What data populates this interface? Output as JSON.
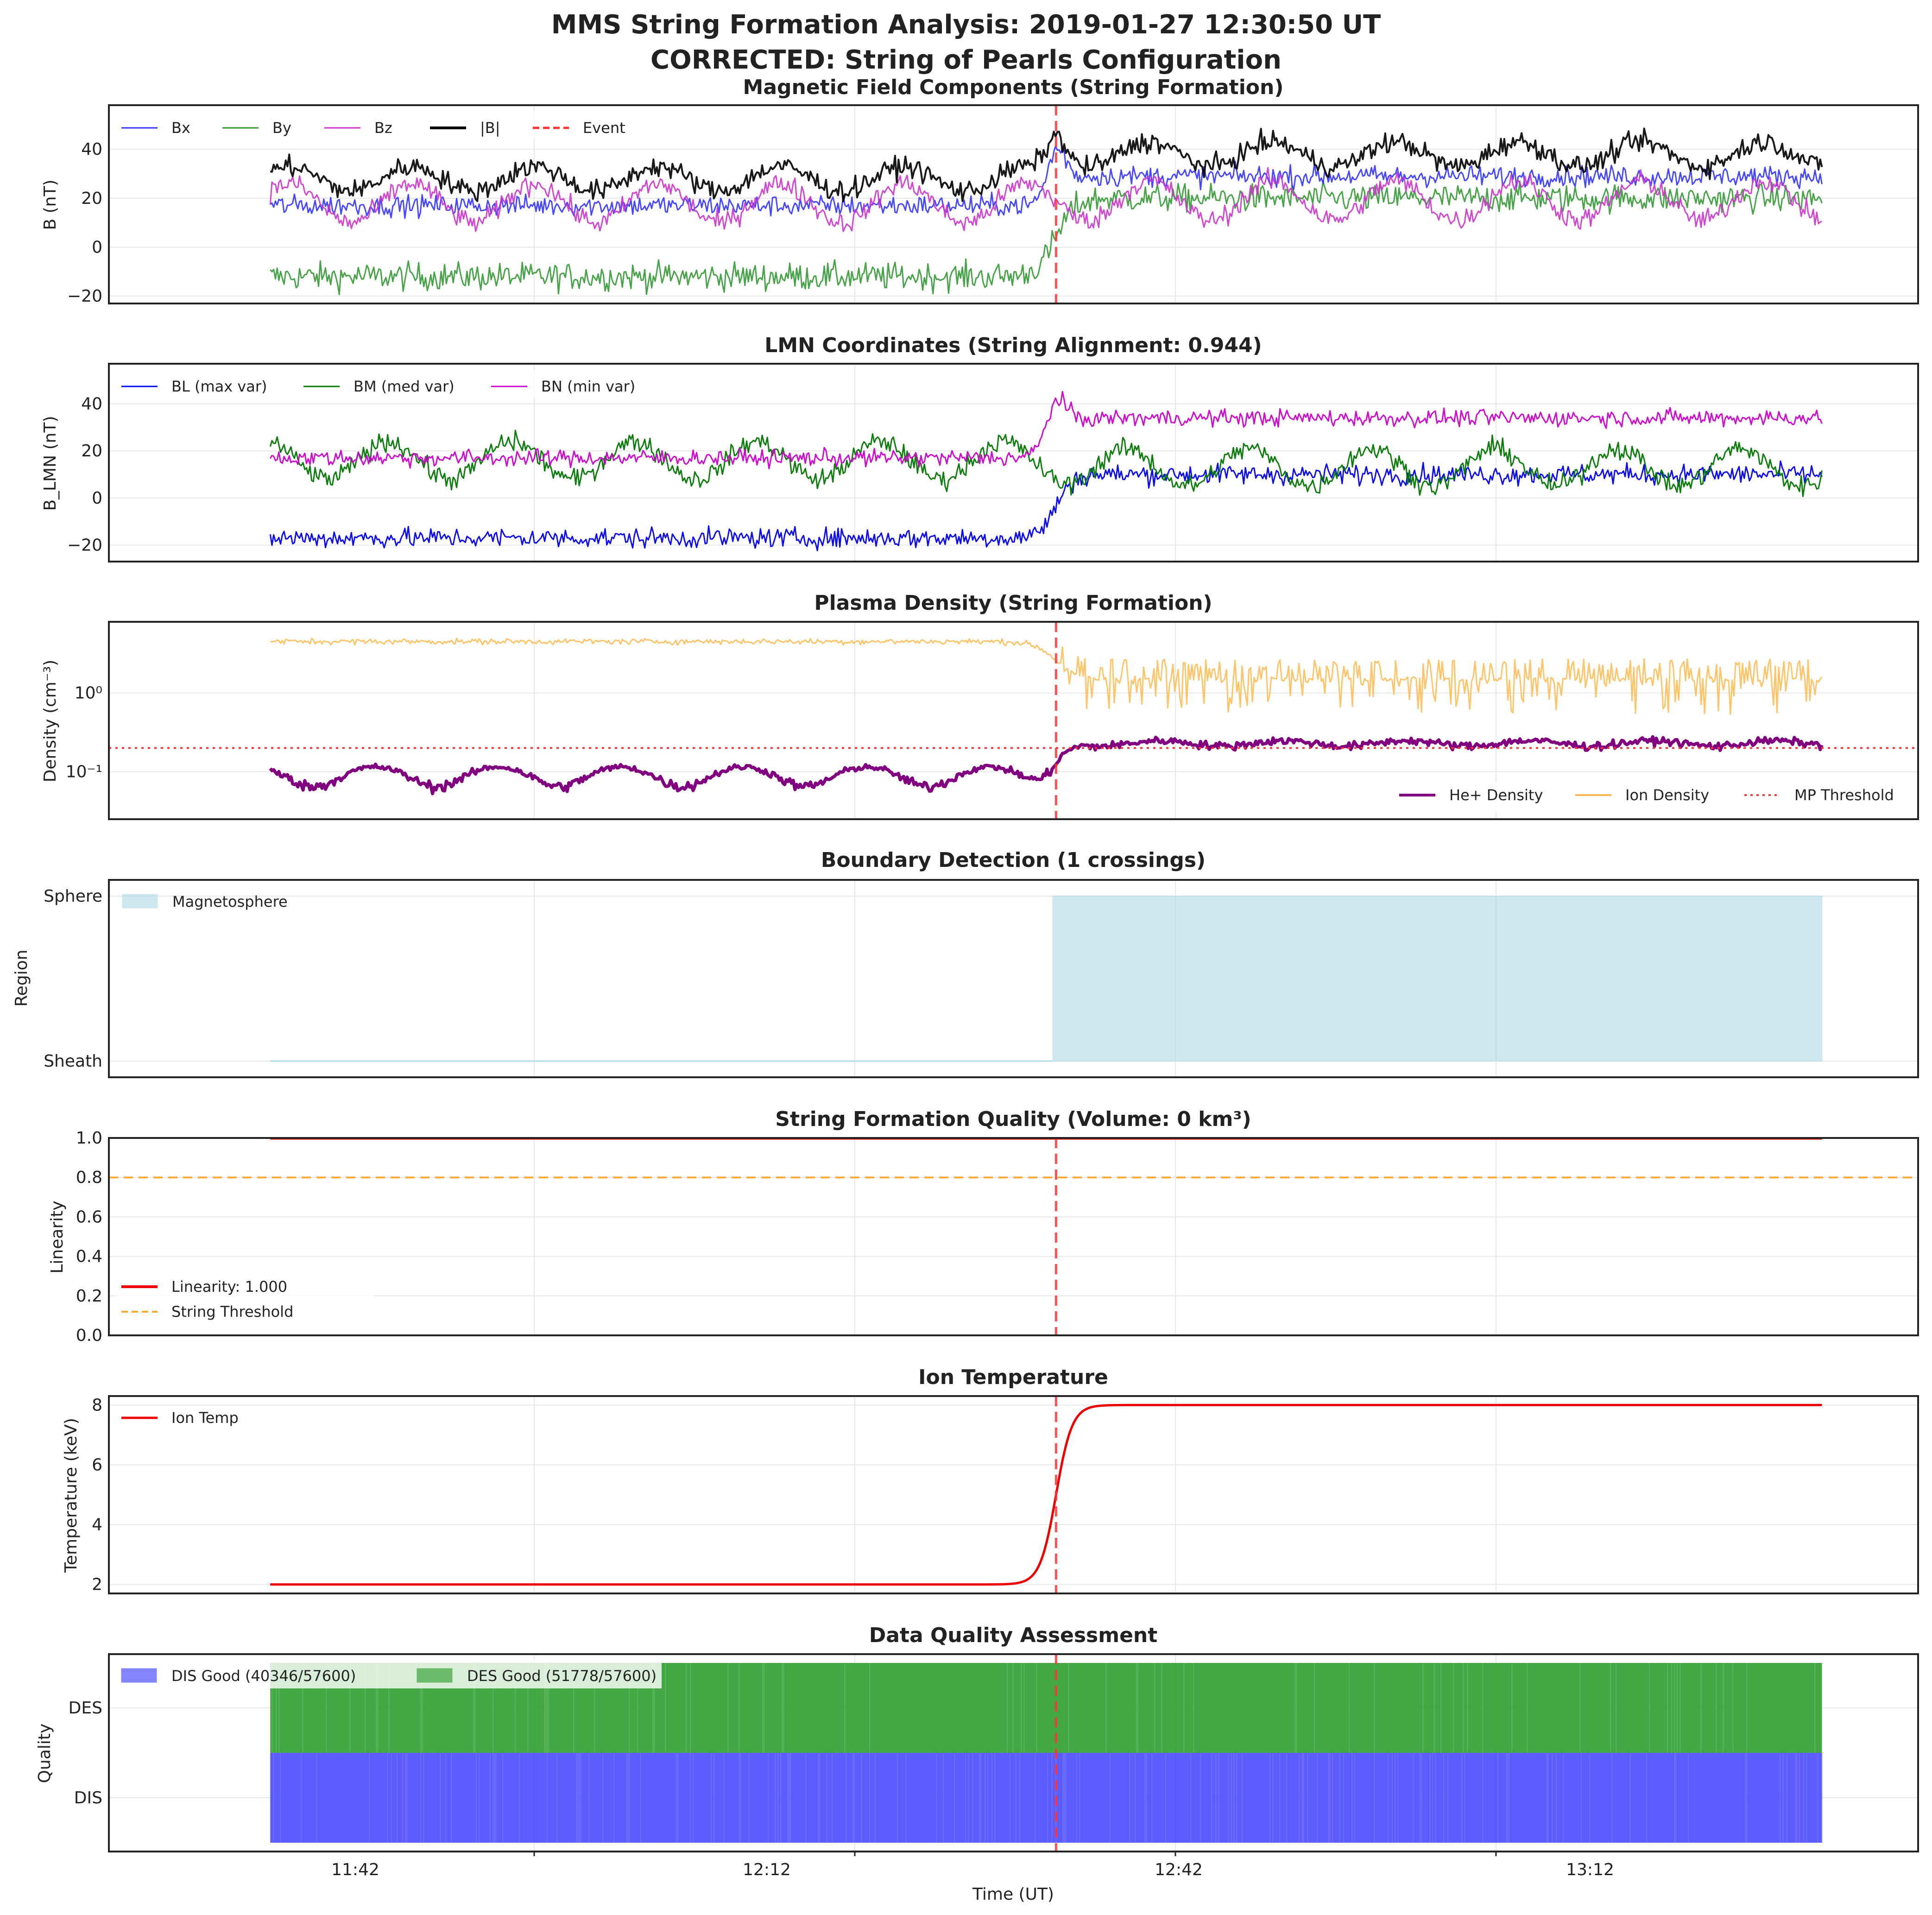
{
  "figure": {
    "title_line1": "MMS String Formation Analysis: 2019-01-27 12:30:50 UT",
    "title_line2": "CORRECTED: String of Pearls Configuration",
    "xlabel": "Time (UT)",
    "x_ticks": [
      "11:42",
      "12:12",
      "12:42",
      "13:12"
    ],
    "event_label": "Event",
    "event_color": "#ff3333"
  },
  "chart_data": [
    {
      "id": "mag",
      "type": "line",
      "title": "Magnetic Field Components (String Formation)",
      "ylabel": "B (nT)",
      "y_ticks": [
        "40",
        "20",
        "0",
        "−20"
      ],
      "ylim": [
        -23,
        58
      ],
      "grid": true,
      "legend": "top-left",
      "event_time": "12:30:50",
      "series": [
        {
          "name": "Bx",
          "color": "#3333ff",
          "before": 17,
          "after": 29,
          "peak": 46,
          "noise": 3
        },
        {
          "name": "By",
          "color": "#339933",
          "before": -12,
          "after": 20,
          "noise": 4
        },
        {
          "name": "Bz",
          "color": "#cc33cc",
          "before": 18,
          "after": 19,
          "oscillation": 8,
          "noise": 3
        },
        {
          "name": "|B|",
          "color": "#000000",
          "before": 28,
          "after": 38,
          "peak": 50,
          "oscillation": 5,
          "noise": 3
        }
      ]
    },
    {
      "id": "lmn",
      "type": "line",
      "title": "LMN Coordinates (String Alignment: 0.944)",
      "ylabel": "B_LMN (nT)",
      "y_ticks": [
        "40",
        "20",
        "0",
        "−20"
      ],
      "ylim": [
        -27,
        57
      ],
      "grid": true,
      "legend": "top-left",
      "series": [
        {
          "name": "BL (max var)",
          "color": "#0000ee",
          "before": -17,
          "after": 10,
          "noise": 3
        },
        {
          "name": "BM (med var)",
          "color": "#007700",
          "before": 16,
          "after": 13,
          "oscillation": 8,
          "noise": 3
        },
        {
          "name": "BN (min var)",
          "color": "#cc00cc",
          "before": 17,
          "after": 34,
          "peak": 50,
          "noise": 2.5
        }
      ]
    },
    {
      "id": "density",
      "type": "line",
      "title": "Plasma Density (String Formation)",
      "ylabel": "Density (cm⁻³)",
      "y_scale": "log",
      "y_ticks": [
        "10⁰",
        "10⁻¹"
      ],
      "ylim": [
        0.025,
        8
      ],
      "grid": true,
      "legend": "bottom-right",
      "threshold": {
        "name": "MP Threshold",
        "value": 0.2,
        "color": "#ff3333"
      },
      "series": [
        {
          "name": "He+ Density",
          "color": "#800080",
          "before": 0.09,
          "after": 0.23
        },
        {
          "name": "Ion Density",
          "color": "#ffb84d",
          "before": 4.5,
          "after": 1.5
        }
      ]
    },
    {
      "id": "boundary",
      "type": "area",
      "title": "Boundary Detection (1 crossings)",
      "ylabel": "Region",
      "y_ticks": [
        "Sphere",
        "Sheath"
      ],
      "legend": "top-left",
      "series": [
        {
          "name": "Magnetosphere",
          "color": "#add8e6",
          "before": 0,
          "after": 1
        }
      ]
    },
    {
      "id": "quality",
      "type": "line",
      "title": "String Formation Quality (Volume: 0 km³)",
      "ylabel": "Linearity",
      "y_ticks": [
        "1.0",
        "0.8",
        "0.6",
        "0.4",
        "0.2",
        "0.0"
      ],
      "ylim": [
        0,
        1
      ],
      "grid": true,
      "legend": "bottom-left",
      "series": [
        {
          "name": "Linearity: 1.000",
          "color": "#ee0000",
          "value": 1.0
        },
        {
          "name": "String Threshold",
          "color": "#ffaa33",
          "value": 0.8
        }
      ]
    },
    {
      "id": "temp",
      "type": "line",
      "title": "Ion Temperature",
      "ylabel": "Temperature (keV)",
      "y_ticks": [
        "8",
        "6",
        "4",
        "2"
      ],
      "ylim": [
        1.7,
        8.3
      ],
      "grid": true,
      "legend": "top-left",
      "series": [
        {
          "name": "Ion Temp",
          "color": "#ee0000",
          "before": 2,
          "after": 8
        }
      ]
    },
    {
      "id": "dq",
      "type": "bar",
      "title": "Data Quality Assessment",
      "ylabel": "Quality",
      "y_ticks": [
        "DES",
        "DIS"
      ],
      "legend": "top-left",
      "series": [
        {
          "name": "DIS Good (40346/57600)",
          "color": "#3333ff",
          "good": 40346,
          "total": 57600
        },
        {
          "name": "DES Good (51778/57600)",
          "color": "#229922",
          "good": 51778,
          "total": 57600
        }
      ]
    }
  ]
}
